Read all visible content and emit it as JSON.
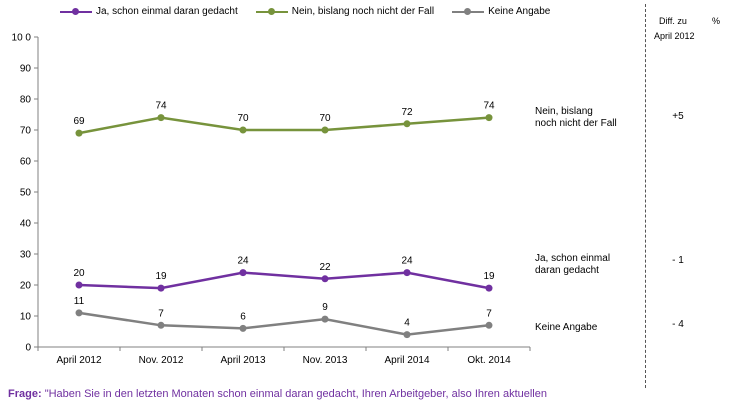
{
  "chart_data": {
    "type": "line",
    "categories": [
      "April 2012",
      "Nov. 2012",
      "April 2013",
      "Nov. 2013",
      "April 2014",
      "Okt. 2014"
    ],
    "ylim": [
      0,
      100
    ],
    "yticks": [
      0,
      10,
      20,
      30,
      40,
      50,
      60,
      70,
      80,
      90,
      100
    ],
    "ytick_labels": [
      "0",
      "10",
      "20",
      "30",
      "40",
      "50",
      "60",
      "70",
      "80",
      "90",
      "10 0"
    ],
    "legend_position": "top",
    "grid": false,
    "series": [
      {
        "name": "Ja, schon einmal daran gedacht",
        "end_label": [
          "Ja, schon einmal",
          "daran gedacht"
        ],
        "color": "#7030a0",
        "values": [
          20,
          19,
          24,
          22,
          24,
          19
        ],
        "diff": "- 1",
        "diff_color": "#2e9a2e"
      },
      {
        "name": "Nein, bislang noch nicht der Fall",
        "end_label": [
          "Nein, bislang",
          "noch nicht der Fall"
        ],
        "color": "#77933c",
        "values": [
          69,
          74,
          70,
          70,
          72,
          74
        ],
        "diff": "+5",
        "diff_color": "#2e9a2e"
      },
      {
        "name": "Keine Angabe",
        "end_label": [
          "Keine Angabe"
        ],
        "color": "#808080",
        "values": [
          11,
          7,
          6,
          9,
          4,
          7
        ],
        "diff": "- 4",
        "diff_color": "#e02020"
      }
    ],
    "diff_header": {
      "line1": "Diff. zu",
      "unit": "%",
      "line2": "April 2012"
    }
  },
  "footer": {
    "question_label": "Frage:",
    "question_text": "\"Haben Sie in den letzten Monaten schon einmal daran gedacht, Ihren Arbeitgeber, also Ihren aktuellen"
  }
}
